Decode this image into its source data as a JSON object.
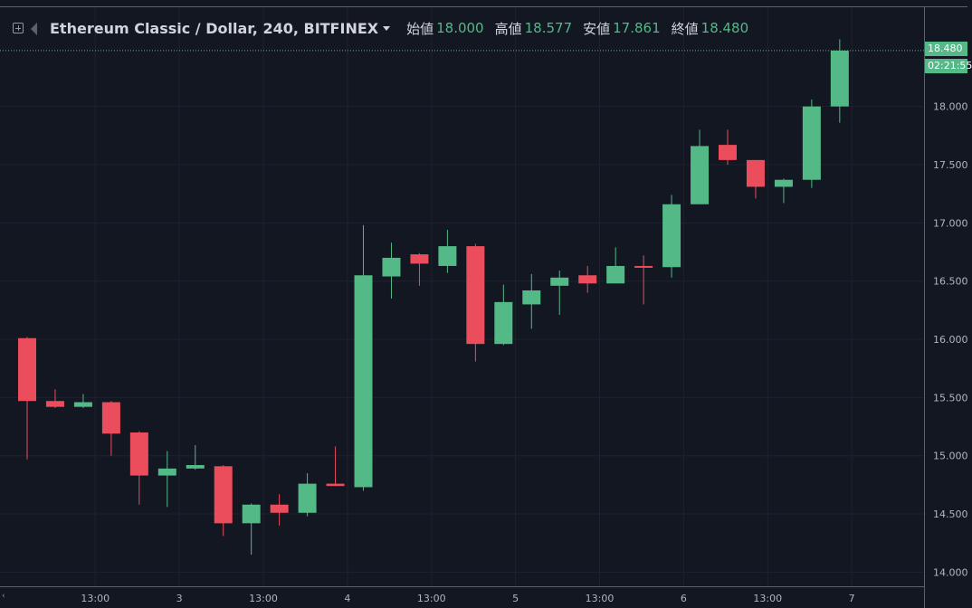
{
  "header": {
    "symbol": "Ethereum Classic / Dollar, 240, BITFINEX",
    "open_label": "始値",
    "open_value": "18.000",
    "high_label": "高値",
    "high_value": "18.577",
    "low_label": "安値",
    "low_value": "17.861",
    "close_label": "終値",
    "close_value": "18.480",
    "icons": [
      "expand-toggle-icon",
      "flag-icon",
      "symbol-dropdown-caret-icon"
    ]
  },
  "price_tags": {
    "last_price": "18.480",
    "countdown": "02:21:55"
  },
  "corner_mark": "‹",
  "colors": {
    "background": "#131722",
    "grid": "#1e2230",
    "up": "#53b987",
    "down": "#eb4d5c",
    "text": "#d1d4dc",
    "axis_text": "#b2b5be",
    "axis_line": "#5d606b"
  },
  "chart_data": {
    "type": "candlestick",
    "interval": "240",
    "exchange": "BITFINEX",
    "y_ticks": [
      "14.000",
      "14.500",
      "15.000",
      "15.500",
      "16.000",
      "16.500",
      "17.000",
      "17.500",
      "18.000"
    ],
    "y_range": [
      13.93,
      18.76
    ],
    "x_ticks": [
      {
        "label": "13:00",
        "bar": 2.43
      },
      {
        "label": "3",
        "bar": 5.43
      },
      {
        "label": "13:00",
        "bar": 8.43
      },
      {
        "label": "4",
        "bar": 11.43
      },
      {
        "label": "13:00",
        "bar": 14.43
      },
      {
        "label": "5",
        "bar": 17.43
      },
      {
        "label": "13:00",
        "bar": 20.43
      },
      {
        "label": "6",
        "bar": 23.43
      },
      {
        "label": "13:00",
        "bar": 26.43
      },
      {
        "label": "7",
        "bar": 29.43
      }
    ],
    "candles": [
      {
        "o": 16.01,
        "h": 16.02,
        "l": 14.97,
        "c": 15.47
      },
      {
        "o": 15.47,
        "h": 15.57,
        "l": 15.41,
        "c": 15.42
      },
      {
        "o": 15.42,
        "h": 15.53,
        "l": 15.41,
        "c": 15.46
      },
      {
        "o": 15.46,
        "h": 15.47,
        "l": 15.0,
        "c": 15.19
      },
      {
        "o": 15.2,
        "h": 15.21,
        "l": 14.58,
        "c": 14.83
      },
      {
        "o": 14.83,
        "h": 15.04,
        "l": 14.56,
        "c": 14.89
      },
      {
        "o": 14.89,
        "h": 15.09,
        "l": 14.88,
        "c": 14.92
      },
      {
        "o": 14.91,
        "h": 14.92,
        "l": 14.31,
        "c": 14.42
      },
      {
        "o": 14.42,
        "h": 14.59,
        "l": 14.15,
        "c": 14.58
      },
      {
        "o": 14.58,
        "h": 14.67,
        "l": 14.4,
        "c": 14.51
      },
      {
        "o": 14.51,
        "h": 14.85,
        "l": 14.48,
        "c": 14.76
      },
      {
        "o": 14.76,
        "h": 15.08,
        "l": 14.74,
        "c": 14.74
      },
      {
        "o": 14.73,
        "h": 16.98,
        "l": 14.7,
        "c": 16.55
      },
      {
        "o": 16.54,
        "h": 16.83,
        "l": 16.35,
        "c": 16.7
      },
      {
        "o": 16.73,
        "h": 16.74,
        "l": 16.46,
        "c": 16.65
      },
      {
        "o": 16.63,
        "h": 16.94,
        "l": 16.57,
        "c": 16.8
      },
      {
        "o": 16.8,
        "h": 16.82,
        "l": 15.81,
        "c": 15.96
      },
      {
        "o": 15.96,
        "h": 16.47,
        "l": 15.95,
        "c": 16.32
      },
      {
        "o": 16.3,
        "h": 16.56,
        "l": 16.09,
        "c": 16.42
      },
      {
        "o": 16.46,
        "h": 16.59,
        "l": 16.21,
        "c": 16.53
      },
      {
        "o": 16.55,
        "h": 16.63,
        "l": 16.4,
        "c": 16.48
      },
      {
        "o": 16.48,
        "h": 16.79,
        "l": 16.48,
        "c": 16.63
      },
      {
        "o": 16.63,
        "h": 16.72,
        "l": 16.3,
        "c": 16.62
      },
      {
        "o": 16.62,
        "h": 17.24,
        "l": 16.53,
        "c": 17.16
      },
      {
        "o": 17.16,
        "h": 17.8,
        "l": 17.16,
        "c": 17.66
      },
      {
        "o": 17.67,
        "h": 17.8,
        "l": 17.5,
        "c": 17.54
      },
      {
        "o": 17.54,
        "h": 17.54,
        "l": 17.21,
        "c": 17.31
      },
      {
        "o": 17.31,
        "h": 17.38,
        "l": 17.17,
        "c": 17.37
      },
      {
        "o": 17.37,
        "h": 18.06,
        "l": 17.3,
        "c": 18.0
      },
      {
        "o": 18.0,
        "h": 18.577,
        "l": 17.861,
        "c": 18.48
      }
    ]
  }
}
